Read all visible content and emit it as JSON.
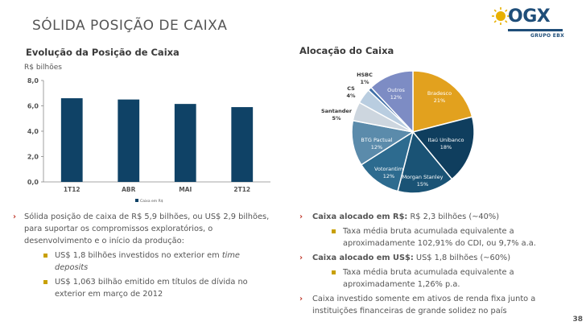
{
  "page": {
    "title": "SÓLIDA POSIÇÃO DE CAIXA",
    "page_number": "38"
  },
  "logo": {
    "name": "OGX",
    "subtitle": "GRUPO EBX"
  },
  "colors": {
    "bar": "#0f4266",
    "accent": "#c0392b",
    "logo_blue": "#1f4e79",
    "logo_sun": "#e8b000",
    "bullet_square": "#c8a000"
  },
  "chart_data": [
    {
      "type": "bar",
      "title": "Evolução da Posição de Caixa",
      "ylabel": "R$ bilhões",
      "categories": [
        "1T12",
        "ABR",
        "MAI",
        "2T12"
      ],
      "series": [
        {
          "name": "Caixa em R$",
          "values": [
            6.6,
            6.5,
            6.15,
            5.9
          ]
        }
      ],
      "ylim": [
        0,
        8
      ],
      "yticks": [
        "0,0",
        "2,0",
        "4,0",
        "6,0",
        "8,0"
      ],
      "grid": false,
      "legend": "bottom"
    },
    {
      "type": "pie",
      "title": "Alocação do Caixa",
      "slices": [
        {
          "label": "Bradesco",
          "pct_label": "21%",
          "value": 21,
          "color": "#e2a11e"
        },
        {
          "label": "Itaú Unibanco",
          "pct_label": "18%",
          "value": 18,
          "color": "#0f3e5e"
        },
        {
          "label": "Morgan Stanley",
          "pct_label": "15%",
          "value": 15,
          "color": "#1a5375"
        },
        {
          "label": "Votorantim",
          "pct_label": "12%",
          "value": 12,
          "color": "#2d6b8f"
        },
        {
          "label": "BTG Pactual",
          "pct_label": "12%",
          "value": 12,
          "color": "#5b8bab"
        },
        {
          "label": "Santander",
          "pct_label": "5%",
          "value": 5,
          "color": "#cdd6df"
        },
        {
          "label": "CS",
          "pct_label": "4%",
          "value": 4,
          "color": "#b9cde0"
        },
        {
          "label": "HSBC",
          "pct_label": "1%",
          "value": 1,
          "color": "#3e6fa8"
        },
        {
          "label": "Outros",
          "pct_label": "12%",
          "value": 12,
          "color": "#7d8cc4"
        }
      ]
    }
  ],
  "left_text": {
    "main": "Sólida posição de caixa de R$ 5,9 bilhões, ou US$ 2,9 bilhões, para suportar os compromissos exploratórios, o desenvolvimento e o início da produção:",
    "sub1_a": "US$ 1,8 bilhões investidos no exterior em ",
    "sub1_b": "time deposits",
    "sub2": "US$ 1,063 bilhão emitido em títulos de dívida no exterior em março de 2012"
  },
  "right_text": {
    "b1_bold": "Caixa alocado em R$:",
    "b1_rest": " R$ 2,3 bilhões (~40%)",
    "b1_sub": "Taxa média bruta acumulada equivalente a aproximadamente 102,91% do CDI, ou 9,7% a.a.",
    "b2_bold": "Caixa alocado em US$:",
    "b2_rest": " US$ 1,8 bilhões (~60%)",
    "b2_sub": "Taxa média bruta acumulada equivalente a aproximadamente 1,26% p.a.",
    "b3": "Caixa investido somente em ativos de renda fixa junto a instituições financeiras de grande solidez no país"
  }
}
